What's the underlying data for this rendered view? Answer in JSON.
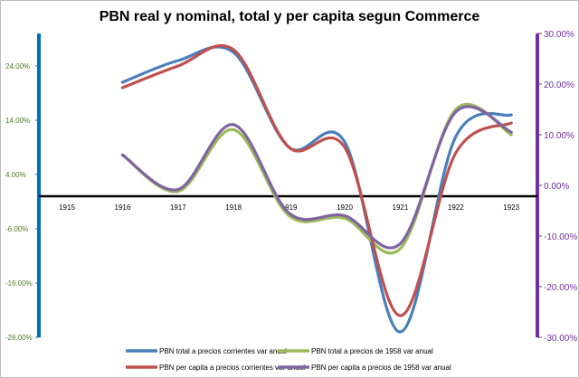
{
  "chart_data": {
    "type": "line",
    "title": "PBN real y nominal, total y per capita segun Commerce",
    "categories": [
      "1915",
      "1916",
      "1917",
      "1918",
      "1919",
      "1920",
      "1921",
      "1922",
      "1923"
    ],
    "y_left": {
      "range": [
        -26,
        30
      ],
      "ticks": [
        -26,
        -16,
        -6,
        4,
        14,
        24
      ],
      "tick_labels": [
        "-26.00%",
        "-16.00%",
        "-6.00%",
        "4.00%",
        "14.00%",
        "24.00%"
      ],
      "color": "#0070c0",
      "tick_color": "#4f7a28"
    },
    "y_right": {
      "range": [
        -30,
        30
      ],
      "ticks": [
        -30,
        -20,
        -10,
        0,
        10,
        20,
        30
      ],
      "tick_labels": [
        "-30.00%",
        "-20.00%",
        "-10.00%",
        "0.00%",
        "10.00%",
        "20.00%",
        "30.00%"
      ],
      "color": "#7030a0"
    },
    "zero_line": {
      "axis": "left",
      "value": 0
    },
    "series": [
      {
        "name": "PBN total a precios corrientes var anual",
        "color": "#4a7ebb",
        "axis": "left",
        "values": [
          null,
          21,
          25,
          26.5,
          9,
          10,
          -25,
          11,
          15
        ]
      },
      {
        "name": "PBN total a precios de 1958 var anual",
        "color": "#9bbb59",
        "axis": "right",
        "values": [
          null,
          6,
          -1.2,
          11,
          -6,
          -6.5,
          -12.5,
          15,
          10
        ]
      },
      {
        "name": "PBN per capita a precios corrientes var anual",
        "color": "#c0504d",
        "axis": "left",
        "values": [
          null,
          20,
          24,
          27,
          9,
          9,
          -22,
          8,
          13.5
        ]
      },
      {
        "name": "PBN per capita a precios de 1958 var anual",
        "color": "#8064a2",
        "axis": "right",
        "values": [
          null,
          6,
          -0.8,
          12,
          -5.5,
          -6,
          -11.5,
          14.5,
          10.5
        ]
      }
    ],
    "legend_position": "bottom",
    "legend": [
      "PBN total a precios corrientes var anual",
      "PBN total a precios de 1958 var anual",
      "PBN per capita a precios corrientes var anual",
      "PBN per capita a precios de 1958 var anual"
    ]
  }
}
